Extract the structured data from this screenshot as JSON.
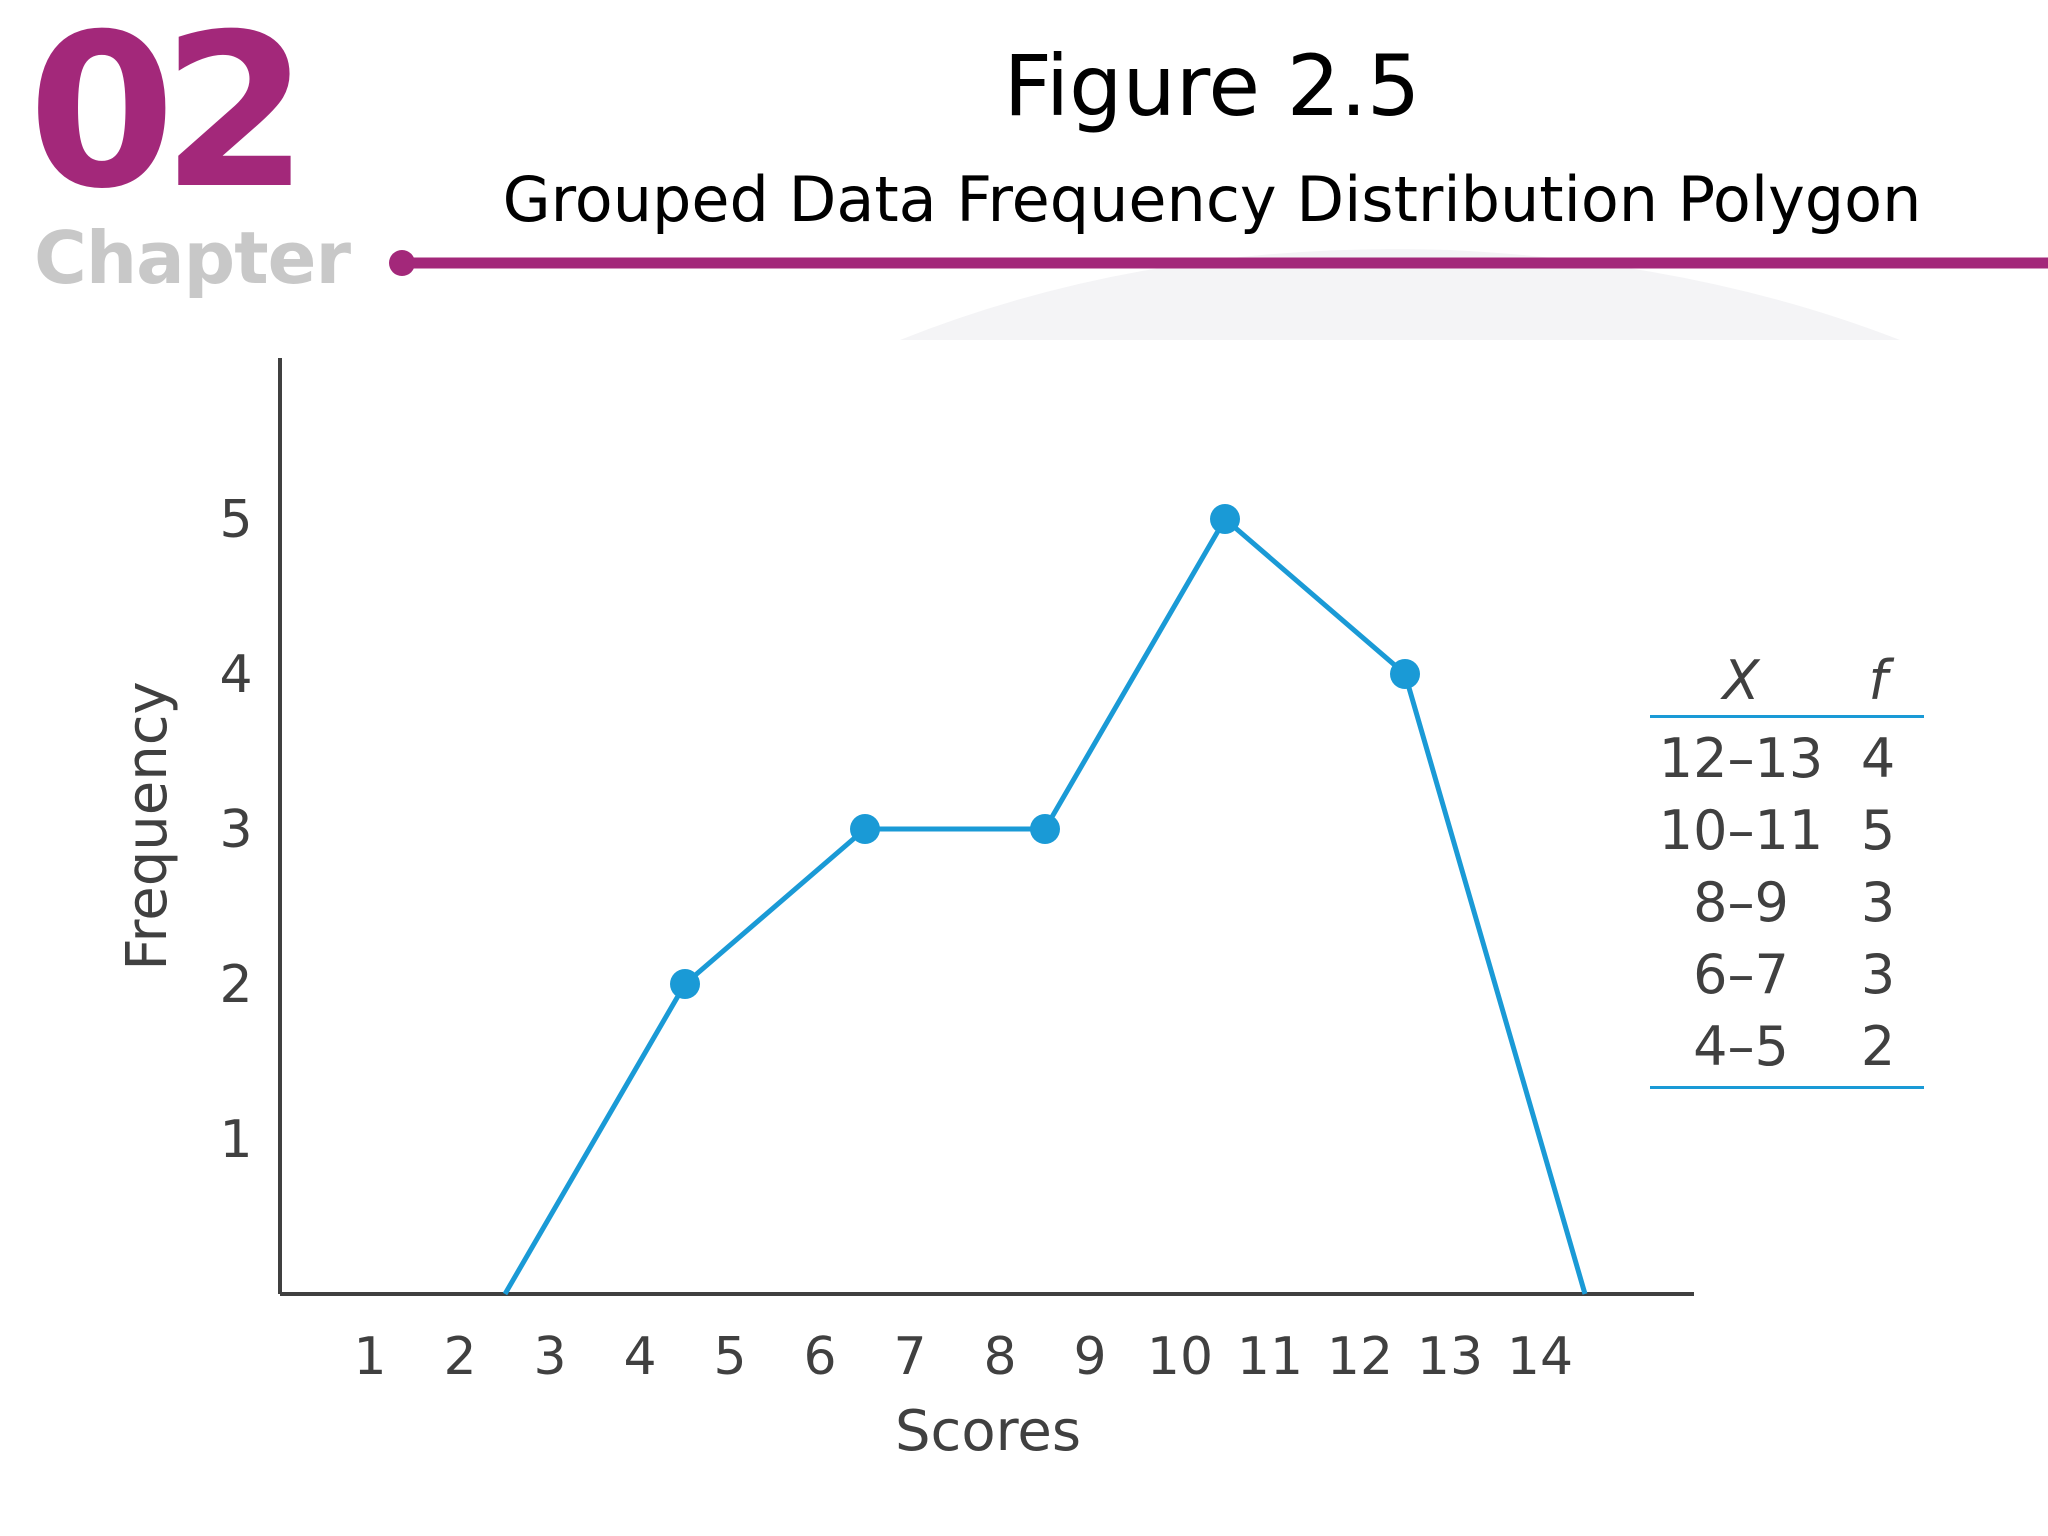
{
  "header": {
    "chapter_number": "02",
    "chapter_word": "Chapter",
    "title": "Figure 2.5",
    "subtitle": "Grouped Data Frequency Distribution Polygon"
  },
  "colors": {
    "brand": "#a3287a",
    "chapter_gray": "#c8c8c8",
    "series": "#1a9ad6",
    "axis": "#404040"
  },
  "chart_data": {
    "type": "line",
    "title": "",
    "xlabel": "Scores",
    "ylabel": "Frequency",
    "xlim": [
      0,
      15
    ],
    "ylim": [
      0,
      6
    ],
    "x_ticks": [
      1,
      2,
      3,
      4,
      5,
      6,
      7,
      8,
      9,
      10,
      11,
      12,
      13,
      14
    ],
    "y_ticks": [
      1,
      2,
      3,
      4,
      5
    ],
    "grid": false,
    "series": [
      {
        "x": [
          2.5,
          4.5,
          6.5,
          8.5,
          10.5,
          12.5,
          14.5
        ],
        "y": [
          0,
          2,
          3,
          3,
          5,
          4,
          0
        ],
        "markers": [
          false,
          true,
          true,
          true,
          true,
          true,
          false
        ]
      }
    ],
    "table": {
      "headers": [
        "X",
        "f"
      ],
      "rows": [
        [
          "12–13",
          "4"
        ],
        [
          "10–11",
          "5"
        ],
        [
          "8–9",
          "3"
        ],
        [
          "6–7",
          "3"
        ],
        [
          "4–5",
          "2"
        ]
      ]
    }
  }
}
